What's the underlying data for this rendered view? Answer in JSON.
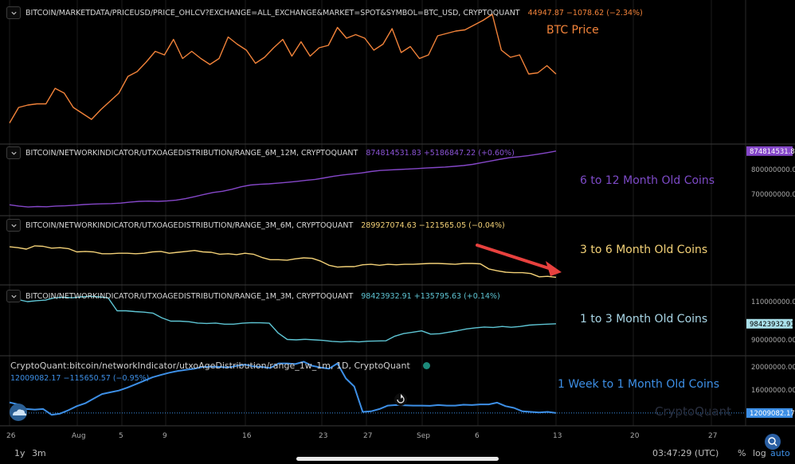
{
  "colors": {
    "btc": "#f2833a",
    "m6_12": "#8547c9",
    "m3_6": "#f3d177",
    "m1_3": "#5ec5d4",
    "w1_1m": "#3d8fe6",
    "arrow": "#e8413e",
    "grid": "#1c1c1c",
    "separator": "#3a3a3a"
  },
  "panels": [
    {
      "id": "btc",
      "title": "BITCOIN/MARKETDATA/PRICEUSD/PRICE_OHLCV?EXCHANGE=ALL_EXCHANGE&MARKET=SPOT&SYMBOL=BTC_USD, CRYPTOQUANT",
      "value": "44947.87 −1078.62 (−2.34%)",
      "big_label": "BTC Price"
    },
    {
      "id": "m6_12",
      "title": "BITCOIN/NETWORKINDICATOR/UTXOAGEDISTRIBUTION/RANGE_6M_12M, CRYPTOQUANT",
      "value": "874814531.83 +5186847.22 (+0.60%)",
      "big_label": "6 to 12 Month Old Coins",
      "axis_ticks": [
        "800000000.00",
        "700000000.00"
      ],
      "last_tag": "874814531.83"
    },
    {
      "id": "m3_6",
      "title": "BITCOIN/NETWORKINDICATOR/UTXOAGEDISTRIBUTION/RANGE_3M_6M, CRYPTOQUANT",
      "value": "289927074.63 −121565.05 (−0.04%)",
      "big_label": "3 to 6 Month Old Coins"
    },
    {
      "id": "m1_3",
      "title": "BITCOIN/NETWORKINDICATOR/UTXOAGEDISTRIBUTION/RANGE_1M_3M, CRYPTOQUANT",
      "value": "98423932.91 +135795.63 (+0.14%)",
      "big_label": "1 to 3 Month Old Coins",
      "axis_ticks": [
        "110000000.00",
        "90000000.00"
      ],
      "last_tag": "98423932.91"
    },
    {
      "id": "w1_1m",
      "title": "CryptoQuant:bitcoin/networkIndicator/utxoAgeDistribution/range_1w_1m, 1D, CryptoQuant",
      "value": "12009082.17 −115650.57 (−0.95%)",
      "big_label": "1 Week to 1 Month Old Coins",
      "axis_ticks": [
        "20000000.00",
        "16000000.00"
      ],
      "last_tag": "12009082.17",
      "watermark": "CryptoQuant"
    }
  ],
  "chart_data": [
    {
      "type": "line",
      "x_labels": [
        "26",
        "Aug",
        "5",
        "9",
        "16",
        "23",
        "27",
        "Sep",
        "6",
        "13",
        "20",
        "27"
      ],
      "series": [
        {
          "name": "BTC Price",
          "values": [
            0.09,
            0.22,
            0.24,
            0.25,
            0.25,
            0.38,
            0.34,
            0.22,
            0.17,
            0.12,
            0.2,
            0.27,
            0.34,
            0.48,
            0.52,
            0.6,
            0.69,
            0.66,
            0.79,
            0.63,
            0.69,
            0.63,
            0.58,
            0.63,
            0.81,
            0.75,
            0.7,
            0.59,
            0.64,
            0.72,
            0.79,
            0.65,
            0.77,
            0.65,
            0.72,
            0.74,
            0.89,
            0.8,
            0.83,
            0.8,
            0.7,
            0.75,
            0.88,
            0.68,
            0.73,
            0.63,
            0.66,
            0.82,
            0.84,
            0.86,
            0.87,
            0.91,
            0.95,
            1.0,
            0.7,
            0.64,
            0.66,
            0.5,
            0.51,
            0.57,
            0.5
          ]
        }
      ]
    },
    {
      "type": "line",
      "x_labels": [
        "26",
        "Aug",
        "5",
        "9",
        "16",
        "23",
        "27",
        "Sep",
        "6",
        "13",
        "20",
        "27"
      ],
      "y_ticks": [
        800000000,
        700000000
      ],
      "series": [
        {
          "name": "6 to 12 Month Old Coins",
          "values": [
            657000000,
            652000000,
            648000000,
            650000000,
            649000000,
            652000000,
            653000000,
            655000000,
            658000000,
            660000000,
            661000000,
            662000000,
            664000000,
            668000000,
            671000000,
            672000000,
            671000000,
            673000000,
            676000000,
            682000000,
            690000000,
            699000000,
            707000000,
            712000000,
            720000000,
            730000000,
            737000000,
            740000000,
            742000000,
            745000000,
            748000000,
            752000000,
            756000000,
            760000000,
            766000000,
            773000000,
            778000000,
            782000000,
            786000000,
            792000000,
            796000000,
            798000000,
            800000000,
            802000000,
            804000000,
            806000000,
            808000000,
            810000000,
            813000000,
            816000000,
            821000000,
            828000000,
            835000000,
            842000000,
            848000000,
            852000000,
            856000000,
            862000000,
            868000000,
            874814531.83
          ]
        }
      ]
    },
    {
      "type": "line",
      "x_labels": [
        "26",
        "Aug",
        "5",
        "9",
        "16",
        "23",
        "27",
        "Sep",
        "6",
        "13",
        "20",
        "27"
      ],
      "series": [
        {
          "name": "3 to 6 Month Old Coins",
          "values": [
            0.74,
            0.72,
            0.69,
            0.76,
            0.75,
            0.71,
            0.72,
            0.7,
            0.63,
            0.64,
            0.63,
            0.59,
            0.59,
            0.6,
            0.6,
            0.59,
            0.6,
            0.63,
            0.64,
            0.6,
            0.62,
            0.64,
            0.66,
            0.63,
            0.62,
            0.58,
            0.59,
            0.57,
            0.6,
            0.58,
            0.51,
            0.46,
            0.46,
            0.45,
            0.48,
            0.5,
            0.49,
            0.43,
            0.34,
            0.3,
            0.31,
            0.31,
            0.35,
            0.36,
            0.34,
            0.36,
            0.35,
            0.36,
            0.36,
            0.37,
            0.38,
            0.38,
            0.37,
            0.36,
            0.38,
            0.38,
            0.37,
            0.26,
            0.22,
            0.19,
            0.18,
            0.18,
            0.16,
            0.09,
            0.1,
            0.08
          ]
        }
      ]
    },
    {
      "type": "line",
      "x_labels": [
        "26",
        "Aug",
        "5",
        "9",
        "16",
        "23",
        "27",
        "Sep",
        "6",
        "13",
        "20",
        "27"
      ],
      "y_ticks": [
        110000000,
        90000000
      ],
      "series": [
        {
          "name": "1 to 3 Month Old Coins",
          "values": [
            112500000,
            111000000,
            110000000,
            110500000,
            110800000,
            112000000,
            112300000,
            112000000,
            112500000,
            112800000,
            112500000,
            112000000,
            105200000,
            105200000,
            104800000,
            104500000,
            104000000,
            101500000,
            99800000,
            99800000,
            99500000,
            98800000,
            98600000,
            98800000,
            98200000,
            98200000,
            98700000,
            99000000,
            98900000,
            98700000,
            93500000,
            90200000,
            90000000,
            90300000,
            90000000,
            89700000,
            89200000,
            88900000,
            89200000,
            88900000,
            89300000,
            89400000,
            89500000,
            91900000,
            93300000,
            94000000,
            94700000,
            93000000,
            93200000,
            94000000,
            94800000,
            95700000,
            96300000,
            96700000,
            96500000,
            97000000,
            96600000,
            97000000,
            97700000,
            98000000,
            98200000,
            98423932.91
          ]
        }
      ]
    },
    {
      "type": "line",
      "x_labels": [
        "26",
        "Aug",
        "5",
        "9",
        "16",
        "23",
        "27",
        "Sep",
        "6",
        "13",
        "20",
        "27"
      ],
      "y_ticks": [
        20000000,
        16000000
      ],
      "series": [
        {
          "name": "1 Week to 1 Month Old Coins",
          "values": [
            13850000,
            13500000,
            12700000,
            12600000,
            12700000,
            11700000,
            11900000,
            12500000,
            13200000,
            13700000,
            14500000,
            15300000,
            15600000,
            15900000,
            16400000,
            17000000,
            17600000,
            18200000,
            18600000,
            19000000,
            19300000,
            19500000,
            19700000,
            20000000,
            20050000,
            20000000,
            19900000,
            20200000,
            20400000,
            20100000,
            20000000,
            19800000,
            20600000,
            20600000,
            20500000,
            20900000,
            20200000,
            19900000,
            19700000,
            20600000,
            18000000,
            16600000,
            12200000,
            12300000,
            12700000,
            13300000,
            13400000,
            13350000,
            13300000,
            13300000,
            13250000,
            13400000,
            13300000,
            13300000,
            13450000,
            13400000,
            13500000,
            13500000,
            13800000,
            13200000,
            12900000,
            12300000,
            12200000,
            12100000,
            12200000,
            12009082.17
          ]
        }
      ]
    }
  ],
  "arrow": {
    "from": [
      0.0,
      0.0
    ],
    "to": [
      1.0,
      1.0
    ]
  },
  "time_axis": [
    "26",
    "Aug",
    "5",
    "9",
    "16",
    "23",
    "27",
    "Sep",
    "6",
    "13",
    "20",
    "27"
  ],
  "bottom_bar": {
    "range_1y": "1y",
    "range_3m": "3m",
    "time": "03:47:29 (UTC)",
    "percent": "%",
    "log": "log",
    "auto": "auto"
  }
}
